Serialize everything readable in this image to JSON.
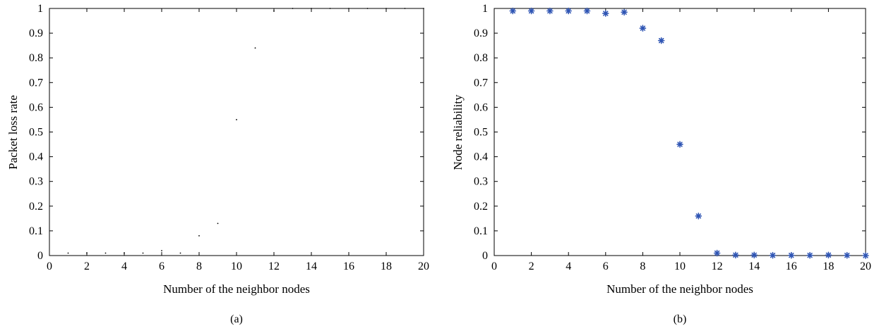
{
  "chart_data": [
    {
      "type": "scatter",
      "panel": "a",
      "caption": "(a)",
      "xlabel": "Number of the neighbor nodes",
      "ylabel": "Packet loss rate",
      "xlim": [
        0,
        20
      ],
      "ylim": [
        0,
        1
      ],
      "xticks": [
        "0",
        "2",
        "4",
        "6",
        "8",
        "10",
        "12",
        "14",
        "16",
        "18",
        "20"
      ],
      "yticks": [
        "0",
        "0.1",
        "0.2",
        "0.3",
        "0.4",
        "0.5",
        "0.6",
        "0.7",
        "0.8",
        "0.9",
        "1"
      ],
      "grid": false,
      "marker": "dot",
      "color": "#000000",
      "series": [
        {
          "x": [
            1,
            2,
            3,
            4,
            5,
            6,
            7,
            8,
            9,
            10,
            11,
            12,
            13,
            14,
            15,
            16,
            17,
            18,
            19,
            20
          ],
          "y": [
            0.01,
            0.01,
            0.01,
            0.01,
            0.01,
            0.02,
            0.01,
            0.08,
            0.13,
            0.55,
            0.84,
            0.99,
            1.0,
            1.0,
            1.0,
            1.0,
            1.0,
            1.0,
            1.0,
            1.0
          ]
        }
      ]
    },
    {
      "type": "scatter",
      "panel": "b",
      "caption": "(b)",
      "xlabel": "Number of the neighbor nodes",
      "ylabel": "Node reliability",
      "xlim": [
        0,
        20
      ],
      "ylim": [
        0,
        1
      ],
      "xticks": [
        "0",
        "2",
        "4",
        "6",
        "8",
        "10",
        "12",
        "14",
        "16",
        "18",
        "20"
      ],
      "yticks": [
        "0",
        "0.1",
        "0.2",
        "0.3",
        "0.4",
        "0.5",
        "0.6",
        "0.7",
        "0.8",
        "0.9",
        "1"
      ],
      "grid": false,
      "marker": "asterisk",
      "color": "#2f55b4",
      "series": [
        {
          "x": [
            1,
            2,
            3,
            4,
            5,
            6,
            7,
            8,
            9,
            10,
            11,
            12,
            13,
            14,
            15,
            16,
            17,
            18,
            19,
            20
          ],
          "y": [
            0.99,
            0.99,
            0.99,
            0.99,
            0.99,
            0.98,
            0.985,
            0.92,
            0.87,
            0.45,
            0.16,
            0.01,
            0.002,
            0.002,
            0.001,
            0.001,
            0.001,
            0.002,
            0.001,
            0.0
          ]
        }
      ]
    }
  ]
}
